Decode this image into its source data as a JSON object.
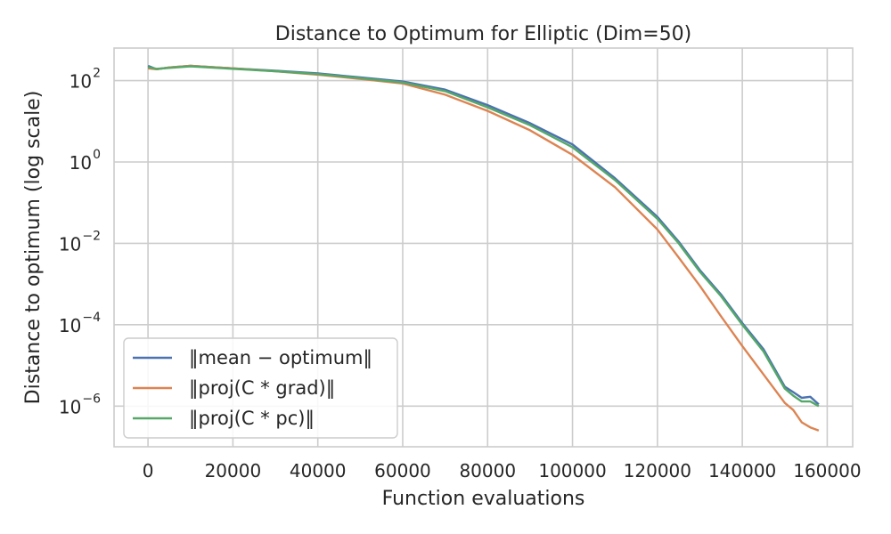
{
  "chart_data": {
    "type": "line",
    "title": "Distance to Optimum for Elliptic (Dim=50)",
    "xlabel": "Function evaluations",
    "ylabel": "Distance to optimum (log scale)",
    "xlim": [
      -8000,
      166000
    ],
    "ylim_log10": [
      -7.0,
      2.8
    ],
    "yscale": "log",
    "grid": true,
    "legend_position": "lower-left",
    "x_ticks": [
      {
        "value": 0,
        "label": "0"
      },
      {
        "value": 20000,
        "label": "20000"
      },
      {
        "value": 40000,
        "label": "40000"
      },
      {
        "value": 60000,
        "label": "60000"
      },
      {
        "value": 80000,
        "label": "80000"
      },
      {
        "value": 100000,
        "label": "100000"
      },
      {
        "value": 120000,
        "label": "120000"
      },
      {
        "value": 140000,
        "label": "140000"
      },
      {
        "value": 160000,
        "label": "160000"
      }
    ],
    "y_ticks": [
      {
        "exp": 2,
        "base": "10",
        "sup": "2"
      },
      {
        "exp": 0,
        "base": "10",
        "sup": "0"
      },
      {
        "exp": -2,
        "base": "10",
        "sup": "−2"
      },
      {
        "exp": -4,
        "base": "10",
        "sup": "−4"
      },
      {
        "exp": -6,
        "base": "10",
        "sup": "−6"
      }
    ],
    "series": [
      {
        "name": "‖mean − optimum‖",
        "color": "#4c72b0",
        "x": [
          0,
          2000,
          5000,
          10000,
          20000,
          30000,
          40000,
          50000,
          60000,
          70000,
          80000,
          90000,
          100000,
          110000,
          120000,
          125000,
          130000,
          135000,
          140000,
          145000,
          150000,
          152000,
          154000,
          156000,
          158000
        ],
        "y": [
          230,
          190,
          210,
          230,
          200,
          175,
          150,
          120,
          95,
          60,
          25,
          9,
          2.7,
          0.4,
          0.045,
          0.011,
          0.0022,
          0.00055,
          0.00011,
          2.5e-05,
          3e-06,
          2.2e-06,
          1.6e-06,
          1.7e-06,
          1.1e-06
        ]
      },
      {
        "name": "‖proj(C * grad)‖",
        "color": "#dd8452",
        "x": [
          0,
          2000,
          5000,
          10000,
          20000,
          30000,
          40000,
          50000,
          60000,
          70000,
          80000,
          90000,
          100000,
          110000,
          120000,
          125000,
          130000,
          135000,
          140000,
          145000,
          150000,
          152000,
          154000,
          156000,
          158000
        ],
        "y": [
          200,
          190,
          210,
          230,
          200,
          170,
          140,
          110,
          85,
          45,
          18,
          6,
          1.5,
          0.24,
          0.022,
          0.0045,
          0.0009,
          0.00016,
          3e-05,
          6e-06,
          1.2e-06,
          8e-07,
          4e-07,
          3e-07,
          2.5e-07
        ]
      },
      {
        "name": "‖proj(C * pc)‖",
        "color": "#55a868",
        "x": [
          0,
          2000,
          5000,
          10000,
          20000,
          30000,
          40000,
          50000,
          60000,
          70000,
          80000,
          90000,
          100000,
          110000,
          120000,
          125000,
          130000,
          135000,
          140000,
          145000,
          150000,
          152000,
          154000,
          156000,
          158000
        ],
        "y": [
          215,
          195,
          205,
          225,
          195,
          170,
          145,
          115,
          90,
          55,
          22,
          8,
          2.3,
          0.36,
          0.04,
          0.01,
          0.002,
          0.0005,
          0.0001,
          2.2e-05,
          2.7e-06,
          1.8e-06,
          1.3e-06,
          1.3e-06,
          1e-06
        ]
      }
    ]
  }
}
